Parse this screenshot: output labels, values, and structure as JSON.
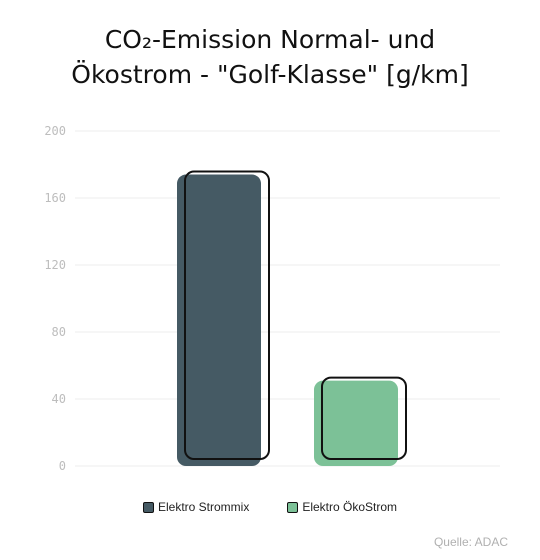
{
  "title_lines": [
    "CO₂-Emission Normal- und",
    "Ökostrom - \"Golf-Klasse\" [g/km]"
  ],
  "source": "Quelle: ADAC",
  "colors": {
    "strommix": "#455a64",
    "oekostrom": "#7cc197",
    "outline": "#111111",
    "grid": "#eeeeee"
  },
  "chart_data": {
    "type": "bar",
    "title": "CO₂-Emission Normal- und Ökostrom - \"Golf-Klasse\" [g/km]",
    "categories": [
      "Elektro Strommix",
      "Elektro ÖkoStrom"
    ],
    "values": [
      174,
      51
    ],
    "yticks": [
      0,
      40,
      80,
      120,
      160,
      200
    ],
    "ylim": [
      0,
      200
    ],
    "grid": true,
    "legend_position": "bottom",
    "legend": [
      "Elektro Strommix",
      "Elektro ÖkoStrom"
    ]
  }
}
